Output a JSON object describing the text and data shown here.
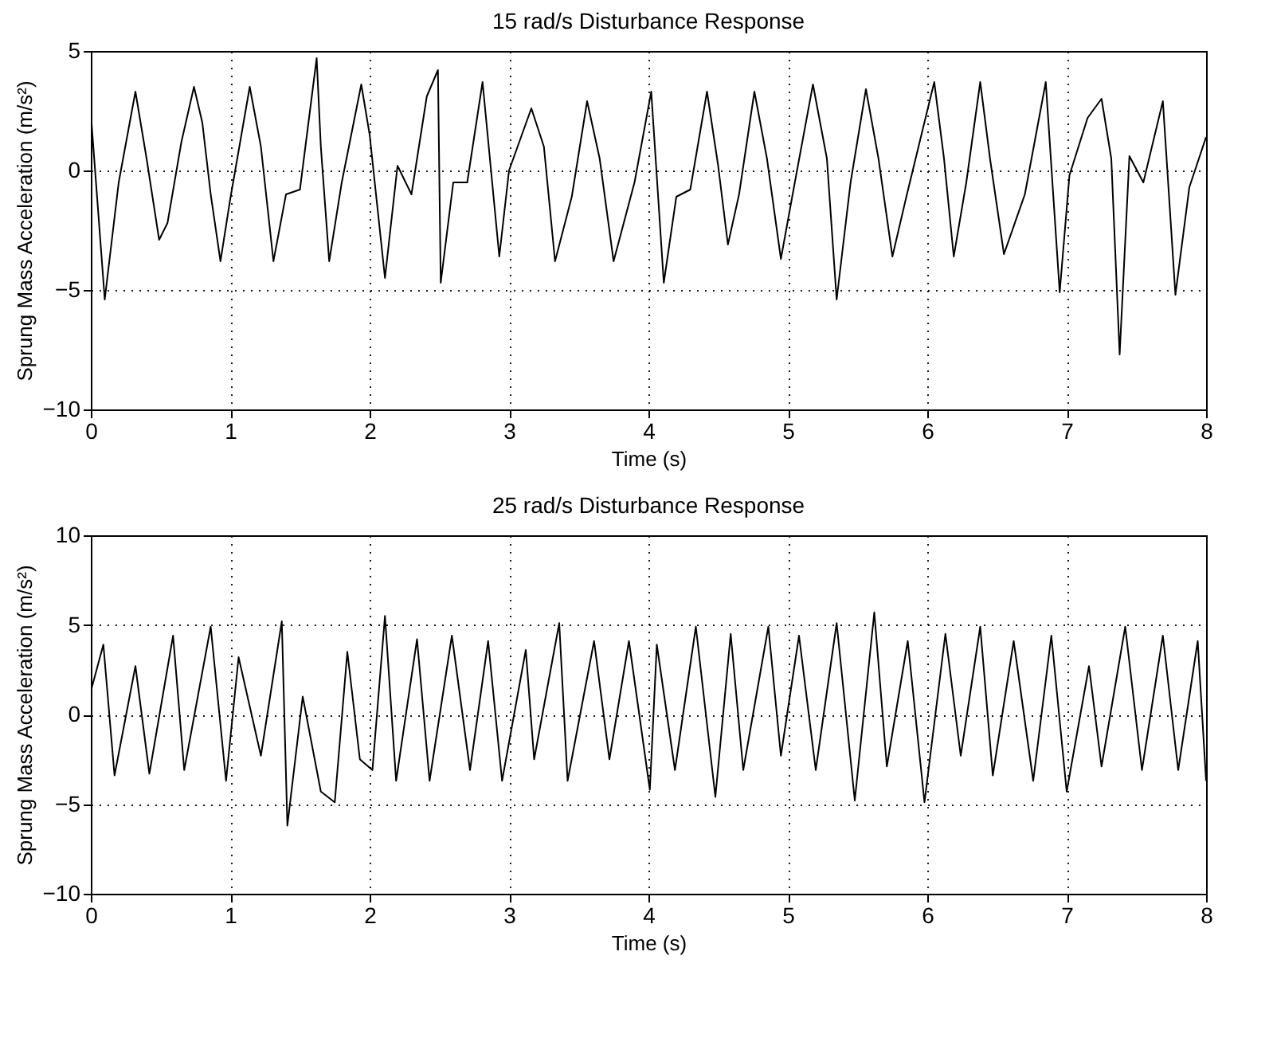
{
  "chart_data": [
    {
      "type": "line",
      "title": "15 rad/s Disturbance Response",
      "xlabel": "Time (s)",
      "ylabel": "Sprung Mass Acceleration (m/s²)",
      "xlim": [
        0,
        8
      ],
      "xticks": [
        0,
        1,
        2,
        3,
        4,
        5,
        6,
        7,
        8
      ],
      "ylim": [
        -10,
        5
      ],
      "yticks": [
        -10,
        -5,
        0,
        5
      ],
      "grid": true,
      "series": [
        {
          "color": "#000000",
          "x": [
            0,
            0.05,
            0.1,
            0.2,
            0.32,
            0.4,
            0.49,
            0.55,
            0.65,
            0.74,
            0.8,
            0.86,
            0.93,
            1.0,
            1.14,
            1.22,
            1.31,
            1.4,
            1.5,
            1.62,
            1.65,
            1.71,
            1.8,
            1.94,
            2.0,
            2.11,
            2.2,
            2.3,
            2.41,
            2.49,
            2.51,
            2.6,
            2.7,
            2.81,
            2.93,
            3.0,
            3.16,
            3.25,
            3.33,
            3.45,
            3.56,
            3.65,
            3.75,
            3.9,
            4.02,
            4.11,
            4.2,
            4.3,
            4.42,
            4.5,
            4.57,
            4.65,
            4.76,
            4.85,
            4.95,
            5.05,
            5.18,
            5.28,
            5.35,
            5.45,
            5.56,
            5.65,
            5.75,
            5.85,
            6.05,
            6.12,
            6.19,
            6.28,
            6.38,
            6.45,
            6.55,
            6.7,
            6.85,
            6.95,
            7.02,
            7.15,
            7.25,
            7.32,
            7.38,
            7.45,
            7.55,
            7.69,
            7.78,
            7.88,
            8.0
          ],
          "values": [
            2.4,
            -1.5,
            -5.4,
            -0.5,
            3.3,
            0.5,
            -2.9,
            -2.2,
            1.2,
            3.5,
            2.0,
            -1.0,
            -3.8,
            -1.2,
            3.5,
            1.0,
            -3.8,
            -1.0,
            -0.8,
            4.7,
            1.0,
            -3.8,
            -0.5,
            3.6,
            1.5,
            -4.5,
            0.2,
            -1.0,
            3.1,
            4.2,
            -4.7,
            -0.5,
            -0.5,
            3.7,
            -3.6,
            0,
            2.6,
            1.0,
            -3.8,
            -1.1,
            2.9,
            0.5,
            -3.8,
            -0.5,
            3.3,
            -4.7,
            -1.1,
            -0.8,
            3.3,
            0.2,
            -3.1,
            -1.0,
            3.3,
            0.5,
            -3.7,
            -0.5,
            3.6,
            0.5,
            -5.4,
            -0.5,
            3.4,
            0.5,
            -3.6,
            -1.1,
            3.7,
            0.5,
            -3.6,
            -0.5,
            3.7,
            0.5,
            -3.5,
            -1.0,
            3.7,
            -5.1,
            -0.2,
            2.2,
            3.0,
            0.5,
            -7.7,
            0.6,
            -0.5,
            2.9,
            -5.2,
            -0.7,
            1.4
          ]
        }
      ]
    },
    {
      "type": "line",
      "title": "25 rad/s Disturbance Response",
      "xlabel": "Time (s)",
      "ylabel": "Sprung Mass Acceleration (m/s²)",
      "xlim": [
        0,
        8
      ],
      "xticks": [
        0,
        1,
        2,
        3,
        4,
        5,
        6,
        7,
        8
      ],
      "ylim": [
        -10,
        10
      ],
      "yticks": [
        -10,
        -5,
        0,
        5,
        10
      ],
      "grid": true,
      "series": [
        {
          "color": "#000000",
          "x": [
            0,
            0.09,
            0.17,
            0.32,
            0.42,
            0.59,
            0.67,
            0.86,
            0.97,
            1.06,
            1.22,
            1.37,
            1.41,
            1.52,
            1.65,
            1.75,
            1.84,
            1.93,
            2.02,
            2.11,
            2.19,
            2.34,
            2.43,
            2.59,
            2.72,
            2.85,
            2.95,
            3.12,
            3.18,
            3.36,
            3.42,
            3.61,
            3.72,
            3.86,
            4.01,
            4.06,
            4.19,
            4.34,
            4.48,
            4.59,
            4.68,
            4.86,
            4.95,
            5.08,
            5.2,
            5.35,
            5.48,
            5.62,
            5.71,
            5.86,
            5.98,
            6.13,
            6.24,
            6.38,
            6.47,
            6.62,
            6.76,
            6.89,
            7.0,
            7.16,
            7.25,
            7.42,
            7.54,
            7.69,
            7.8,
            7.94,
            8.0
          ],
          "values": [
            1.3,
            3.9,
            -3.4,
            2.7,
            -3.3,
            4.4,
            -3.1,
            4.9,
            -3.7,
            3.2,
            -2.3,
            5.2,
            -6.2,
            1.0,
            -4.3,
            -4.9,
            3.5,
            -2.5,
            -3.1,
            5.5,
            -3.7,
            4.2,
            -3.7,
            4.4,
            -3.1,
            4.1,
            -3.7,
            3.6,
            -2.5,
            5.1,
            -3.7,
            4.1,
            -2.5,
            4.1,
            -4.2,
            3.9,
            -3.1,
            4.9,
            -4.6,
            4.5,
            -3.1,
            4.9,
            -2.3,
            4.4,
            -3.1,
            5.1,
            -4.8,
            5.7,
            -2.9,
            4.1,
            -4.9,
            4.5,
            -2.3,
            4.9,
            -3.4,
            4.1,
            -3.7,
            4.4,
            -4.3,
            2.7,
            -2.9,
            4.9,
            -3.1,
            4.4,
            -3.1,
            4.1,
            -3.7
          ]
        }
      ]
    }
  ]
}
